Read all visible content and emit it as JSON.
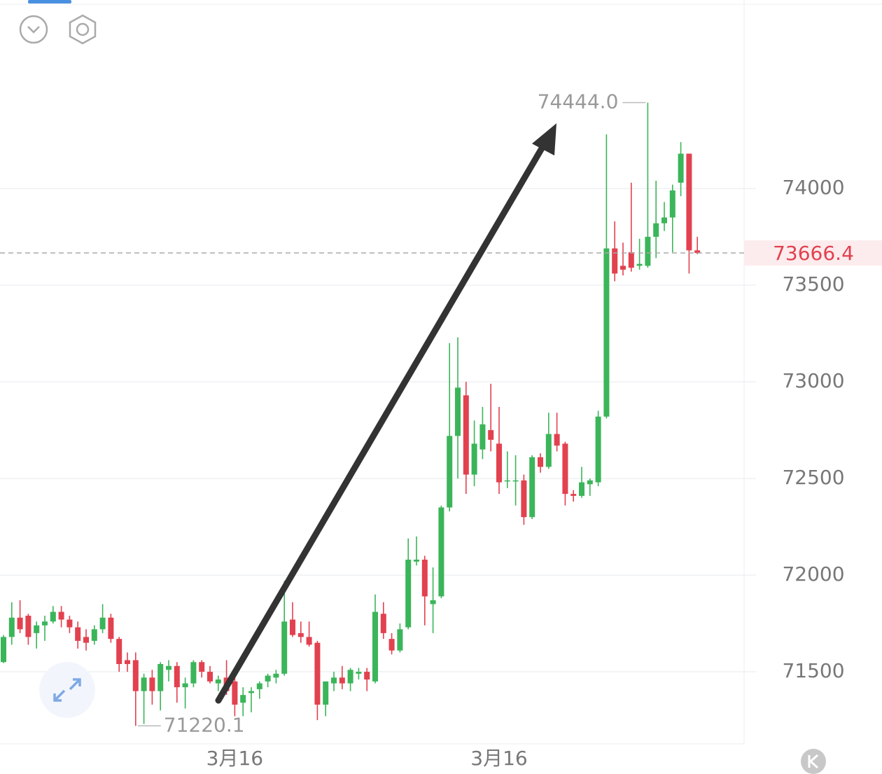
{
  "chart_data": {
    "type": "candlestick",
    "categories": [
      null,
      null,
      null,
      null,
      null,
      null,
      null,
      null,
      null,
      null,
      null,
      null,
      null,
      null,
      null,
      null,
      null,
      null,
      null,
      null,
      null,
      null,
      null,
      null,
      null,
      null,
      null,
      null,
      "3月16",
      null,
      null,
      null,
      null,
      null,
      null,
      null,
      null,
      null,
      null,
      null,
      null,
      null,
      null,
      null,
      null,
      null,
      null,
      null,
      null,
      null,
      null,
      null,
      null,
      null,
      null,
      null,
      null,
      null,
      null,
      null,
      "3月16",
      null,
      null,
      null,
      null,
      null,
      null,
      null,
      null,
      null,
      null,
      null,
      null,
      null,
      null,
      null,
      null,
      null,
      null,
      null,
      null,
      null,
      null,
      null,
      null
    ],
    "open": [
      71550,
      71680,
      71780,
      71790,
      71700,
      71740,
      71760,
      71810,
      71770,
      71730,
      71680,
      71660,
      71720,
      71780,
      71670,
      71560,
      71560,
      71400,
      71470,
      71400,
      71510,
      71530,
      71420,
      71440,
      71550,
      71500,
      71440,
      71470,
      71450,
      71340,
      71390,
      71410,
      71450,
      71470,
      71490,
      71770,
      71700,
      71680,
      71650,
      71330,
      71440,
      71470,
      71440,
      71490,
      71500,
      71450,
      71800,
      71670,
      71610,
      71730,
      72070,
      72080,
      71850,
      71890,
      72350,
      72720,
      72930,
      72520,
      72650,
      72750,
      72680,
      72490,
      72490,
      72490,
      72300,
      72610,
      72560,
      72730,
      72680,
      72420,
      72410,
      72470,
      72480,
      72820,
      73690,
      73600,
      73670,
      73600,
      73600,
      73750,
      73820,
      73850,
      74030,
      74180,
      73680
    ],
    "high": [
      71690,
      71860,
      71870,
      71800,
      71760,
      71790,
      71840,
      71840,
      71790,
      71760,
      71720,
      71740,
      71850,
      71800,
      71680,
      71600,
      71600,
      71490,
      71510,
      71550,
      71560,
      71550,
      71470,
      71560,
      71560,
      71530,
      71480,
      71560,
      71480,
      71420,
      71420,
      71450,
      71490,
      71510,
      71970,
      71860,
      71760,
      71760,
      71660,
      71450,
      71500,
      71530,
      71520,
      71520,
      71520,
      71900,
      71860,
      71700,
      71750,
      72190,
      72200,
      72100,
      72040,
      72360,
      73200,
      73230,
      73000,
      72800,
      72870,
      72990,
      72870,
      72640,
      72620,
      72520,
      72620,
      72630,
      72840,
      72840,
      72690,
      72440,
      72560,
      72500,
      72850,
      74280,
      73830,
      73720,
      74030,
      73740,
      74444,
      74040,
      73930,
      74020,
      74240,
      74180,
      73750
    ],
    "low": [
      71545,
      71640,
      71700,
      71640,
      71620,
      71660,
      71750,
      71730,
      71700,
      71620,
      71610,
      71640,
      71700,
      71650,
      71500,
      71500,
      71220.1,
      71230,
      71330,
      71300,
      71450,
      71340,
      71310,
      71420,
      71470,
      71440,
      71400,
      71380,
      71270,
      71270,
      71290,
      71360,
      71420,
      71440,
      71480,
      71680,
      71650,
      71630,
      71250,
      71270,
      71400,
      71410,
      71400,
      71460,
      71400,
      71440,
      71670,
      71590,
      71600,
      71720,
      72050,
      71740,
      71700,
      71880,
      72330,
      72500,
      72420,
      72460,
      72600,
      72640,
      72420,
      72450,
      72360,
      72260,
      72290,
      72530,
      72550,
      72640,
      72360,
      72380,
      72400,
      72410,
      72460,
      72810,
      73520,
      73550,
      73570,
      73580,
      73590,
      73640,
      73780,
      73670,
      73960,
      73560,
      73660
    ],
    "close": [
      71680,
      71780,
      71720,
      71680,
      71740,
      71760,
      71810,
      71770,
      71730,
      71660,
      71650,
      71720,
      71780,
      71670,
      71540,
      71540,
      71400,
      71470,
      71400,
      71540,
      71530,
      71420,
      71440,
      71550,
      71500,
      71450,
      71460,
      71400,
      71330,
      71380,
      71400,
      71440,
      71480,
      71490,
      71760,
      71690,
      71680,
      71640,
      71330,
      71450,
      71470,
      71440,
      71510,
      71500,
      71460,
      71810,
      71700,
      71610,
      71720,
      72080,
      72080,
      71890,
      71870,
      72350,
      72720,
      72970,
      72520,
      72680,
      72780,
      72700,
      72480,
      72490,
      72490,
      72300,
      72610,
      72560,
      72730,
      72670,
      72420,
      72410,
      72480,
      72490,
      72820,
      73690,
      73560,
      73580,
      73590,
      73610,
      73750,
      73820,
      73850,
      73990,
      74180,
      73680,
      73666.4
    ],
    "up_color": "#3bb55a",
    "down_color": "#e2414f",
    "ylim": [
      71127,
      74975
    ],
    "yticks": [
      71500,
      72000,
      72500,
      73000,
      73500,
      74000
    ],
    "grid": true,
    "annotations": {
      "high": "74444.0",
      "low": "71220.1"
    }
  }
}
